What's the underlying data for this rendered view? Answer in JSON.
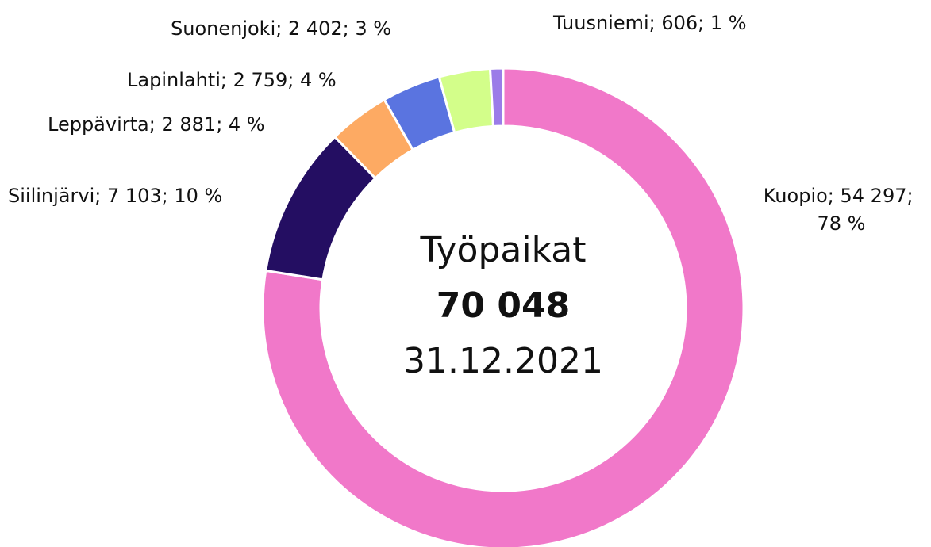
{
  "chart_data": {
    "type": "donut",
    "categories": [
      "Kuopio",
      "Siilinjärvi",
      "Leppävirta",
      "Lapinlahti",
      "Suonenjoki",
      "Tuusniemi"
    ],
    "values": [
      54297,
      7103,
      2881,
      2759,
      2402,
      606
    ],
    "value_labels": [
      "54 297",
      "7 103",
      "2 881",
      "2 759",
      "2 402",
      "606"
    ],
    "percent_labels": [
      "78 %",
      "10 %",
      "4 %",
      "4 %",
      "3 %",
      "1 %"
    ],
    "separator": "; ",
    "colors": [
      "#f178c9",
      "#240e62",
      "#fdaa63",
      "#5a74e0",
      "#d3fe8a",
      "#9b7ce8"
    ],
    "center_title": "Työpaikat",
    "total": 70048,
    "total_label": "70 048",
    "date": "31.12.2021"
  }
}
